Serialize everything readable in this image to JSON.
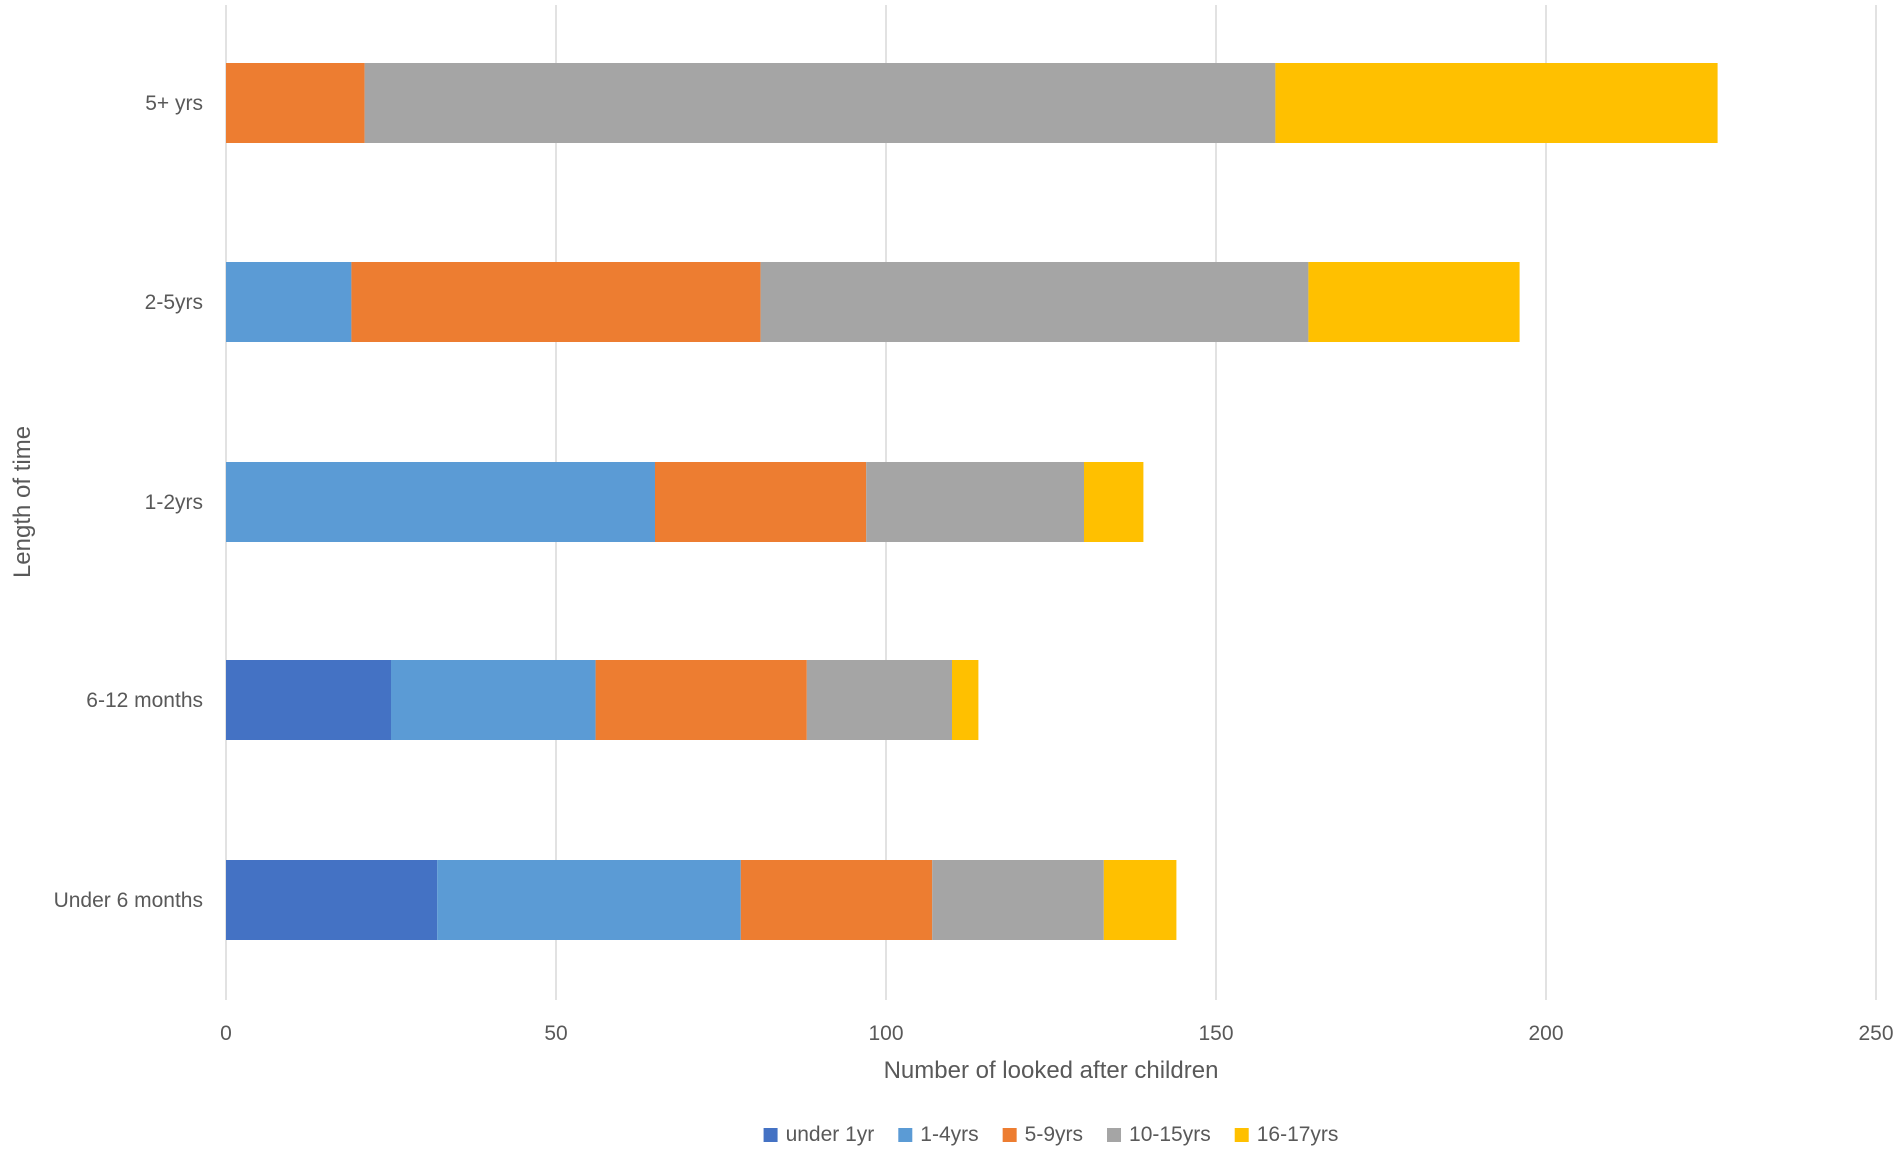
{
  "chart_data": {
    "type": "bar",
    "orientation": "horizontal",
    "stacked": true,
    "categories": [
      "Under 6 months",
      "6-12 months",
      "1-2yrs",
      "2-5yrs",
      "5+ yrs"
    ],
    "series": [
      {
        "name": "under 1yr",
        "color": "#4472C4",
        "values": [
          32,
          25,
          0,
          0,
          0
        ]
      },
      {
        "name": "1-4yrs",
        "color": "#5B9BD5",
        "values": [
          46,
          31,
          65,
          19,
          0
        ]
      },
      {
        "name": "5-9yrs",
        "color": "#ED7D31",
        "values": [
          29,
          32,
          32,
          62,
          21
        ]
      },
      {
        "name": "10-15yrs",
        "color": "#A5A5A5",
        "values": [
          26,
          22,
          33,
          83,
          138
        ]
      },
      {
        "name": "16-17yrs",
        "color": "#FFC000",
        "values": [
          11,
          4,
          9,
          32,
          67
        ]
      }
    ],
    "xlabel": "Number of looked after children",
    "ylabel": "Length of time",
    "xlim": [
      0,
      250
    ],
    "xticks": [
      "0",
      "50",
      "100",
      "150",
      "200",
      "250"
    ],
    "grid": "vertical",
    "legend": "bottom"
  }
}
